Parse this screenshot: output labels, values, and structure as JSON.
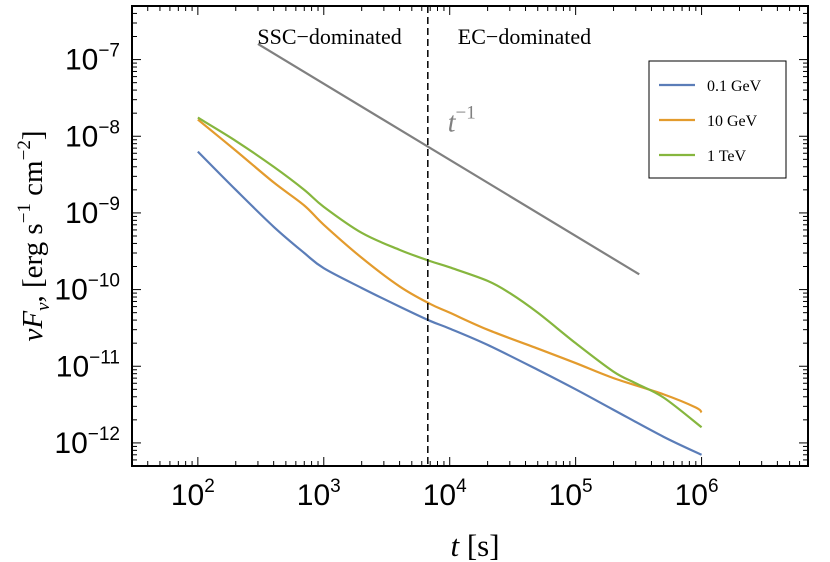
{
  "chart_data": {
    "type": "line",
    "xscale": "log",
    "yscale": "log",
    "xlabel": {
      "var": "t",
      "unit": "[s]"
    },
    "ylabel": {
      "main": "νF",
      "sub": "ν",
      "unit_a": "[erg s",
      "exp_a": "−1",
      "unit_b": " cm",
      "exp_b": "−2",
      "close": "]"
    },
    "xlim": [
      30,
      7000000
    ],
    "ylim": [
      5e-13,
      5e-07
    ],
    "xticks": [
      {
        "value": 100,
        "base": "10",
        "exp": "2"
      },
      {
        "value": 1000,
        "base": "10",
        "exp": "3"
      },
      {
        "value": 10000,
        "base": "10",
        "exp": "4"
      },
      {
        "value": 100000,
        "base": "10",
        "exp": "5"
      },
      {
        "value": 1000000,
        "base": "10",
        "exp": "6"
      }
    ],
    "yticks": [
      {
        "value": 1e-07,
        "base": "10",
        "exp": "−7"
      },
      {
        "value": 1e-08,
        "base": "10",
        "exp": "−8"
      },
      {
        "value": 1e-09,
        "base": "10",
        "exp": "−9"
      },
      {
        "value": 1e-10,
        "base": "10",
        "exp": "−10"
      },
      {
        "value": 1e-11,
        "base": "10",
        "exp": "−11"
      },
      {
        "value": 1e-12,
        "base": "10",
        "exp": "−12"
      }
    ],
    "divider": {
      "x": 6700
    },
    "region_labels": {
      "left": "SSC−dominated",
      "right": "EC−dominated"
    },
    "reference_line": {
      "label_base": "t",
      "label_exp": "−1",
      "label_at": {
        "x": 10000,
        "y": 1e-08
      },
      "color": "#808080",
      "x": [
        300,
        320000
      ],
      "y": [
        1.6e-07,
        1.58e-10
      ]
    },
    "legend": {
      "placement": "top-right"
    },
    "series": [
      {
        "name": "0.1 GeV",
        "color": "#5b7db8",
        "x": [
          100,
          200,
          400,
          700,
          1000,
          2000,
          4000,
          7000,
          10000,
          20000,
          50000,
          100000,
          200000,
          500000,
          1000000
        ],
        "y": [
          6.3e-09,
          2e-09,
          6.6e-10,
          3e-10,
          1.9e-10,
          1.05e-10,
          6e-11,
          3.9e-11,
          3.1e-11,
          1.9e-11,
          9e-12,
          5e-12,
          2.7e-12,
          1.2e-12,
          7e-13
        ]
      },
      {
        "name": "10 GeV",
        "color": "#e39b2d",
        "x": [
          100,
          200,
          400,
          700,
          1000,
          2000,
          4000,
          7000,
          10000,
          20000,
          50000,
          100000,
          200000,
          500000,
          900000,
          1000000
        ],
        "y": [
          1.65e-08,
          6.5e-09,
          2.5e-09,
          1.25e-09,
          7e-10,
          2.6e-10,
          1.1e-10,
          6.5e-11,
          5e-11,
          3e-11,
          1.7e-11,
          1.1e-11,
          7e-12,
          4.3e-12,
          2.9e-12,
          2.5e-12
        ]
      },
      {
        "name": "1 TeV",
        "color": "#86b63e",
        "x": [
          100,
          200,
          400,
          700,
          1000,
          2000,
          4000,
          7000,
          10000,
          20000,
          30000,
          50000,
          100000,
          200000,
          300000,
          500000,
          1000000
        ],
        "y": [
          1.75e-08,
          8.7e-09,
          4e-09,
          2e-09,
          1.2e-09,
          5.5e-10,
          3.3e-10,
          2.35e-10,
          1.95e-10,
          1.3e-10,
          9e-11,
          5e-11,
          2e-11,
          8.5e-12,
          6e-12,
          3.9e-12,
          1.6e-12
        ]
      }
    ]
  }
}
